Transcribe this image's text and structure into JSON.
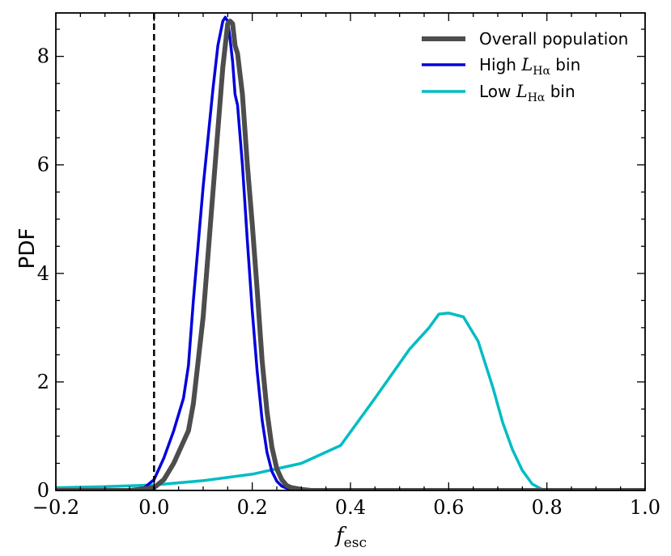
{
  "chart_data": {
    "type": "line",
    "title": "",
    "xlabel": {
      "main": "f",
      "sub": "esc"
    },
    "ylabel": "PDF",
    "xlim": [
      -0.2,
      1.0
    ],
    "ylim": [
      0,
      8.8
    ],
    "xticks": [
      -0.2,
      0.0,
      0.2,
      0.4,
      0.6,
      0.8,
      1.0
    ],
    "xtick_labels": [
      "−0.2",
      "0.0",
      "0.2",
      "0.4",
      "0.6",
      "0.8",
      "1.0"
    ],
    "yticks": [
      0,
      2,
      4,
      6,
      8
    ],
    "ytick_labels": [
      "0",
      "2",
      "4",
      "6",
      "8"
    ],
    "x_minor_step": 0.05,
    "y_minor_step": 0.5,
    "grid": false,
    "legend_position": "top-right",
    "vline": {
      "x": 0.0,
      "style": "dashed",
      "color": "#000000"
    },
    "series": [
      {
        "key": "overall",
        "legend": {
          "prefix": "Overall population",
          "math": "",
          "sub": "",
          "suffix": ""
        },
        "color": "#4d4d4d",
        "x": [
          -0.2,
          -0.05,
          0.0,
          0.02,
          0.04,
          0.06,
          0.07,
          0.08,
          0.1,
          0.12,
          0.14,
          0.15,
          0.155,
          0.16,
          0.165,
          0.17,
          0.18,
          0.19,
          0.2,
          0.21,
          0.22,
          0.23,
          0.24,
          0.25,
          0.26,
          0.27,
          0.28,
          0.3,
          0.32,
          0.35,
          0.4,
          0.6,
          0.8,
          1.0
        ],
        "y": [
          0.0,
          0.0,
          0.05,
          0.2,
          0.5,
          0.9,
          1.1,
          1.6,
          3.2,
          5.5,
          7.8,
          8.6,
          8.65,
          8.6,
          8.2,
          8.05,
          7.3,
          6.0,
          4.9,
          3.7,
          2.4,
          1.45,
          0.8,
          0.4,
          0.2,
          0.09,
          0.05,
          0.02,
          0.0,
          0.0,
          0.0,
          0.0,
          0.0,
          0.0
        ]
      },
      {
        "key": "high",
        "legend": {
          "prefix": "High ",
          "math": "L",
          "sub": "Hα",
          "suffix": " bin"
        },
        "color": "#0000dd",
        "x": [
          -0.2,
          -0.05,
          -0.02,
          0.0,
          0.02,
          0.04,
          0.06,
          0.07,
          0.08,
          0.1,
          0.12,
          0.13,
          0.14,
          0.145,
          0.15,
          0.155,
          0.16,
          0.165,
          0.17,
          0.18,
          0.19,
          0.2,
          0.21,
          0.22,
          0.23,
          0.24,
          0.25,
          0.26,
          0.27,
          0.28,
          0.3,
          0.35,
          0.4,
          0.6,
          0.8,
          1.0
        ],
        "y": [
          0.0,
          0.0,
          0.05,
          0.2,
          0.6,
          1.1,
          1.7,
          2.3,
          3.5,
          5.6,
          7.4,
          8.2,
          8.65,
          8.72,
          8.65,
          8.3,
          7.9,
          7.3,
          7.1,
          6.0,
          4.6,
          3.3,
          2.2,
          1.3,
          0.7,
          0.35,
          0.17,
          0.08,
          0.04,
          0.02,
          0.0,
          0.0,
          0.0,
          0.0,
          0.0,
          0.0
        ]
      },
      {
        "key": "low",
        "legend": {
          "prefix": "Low ",
          "math": "L",
          "sub": "Hα",
          "suffix": " bin"
        },
        "color": "#00bcc4",
        "x": [
          -0.2,
          -0.1,
          0.0,
          0.1,
          0.2,
          0.3,
          0.38,
          0.45,
          0.52,
          0.56,
          0.58,
          0.6,
          0.63,
          0.66,
          0.69,
          0.71,
          0.73,
          0.75,
          0.77,
          0.79,
          0.8,
          0.9,
          1.0
        ],
        "y": [
          0.05,
          0.07,
          0.1,
          0.18,
          0.3,
          0.5,
          0.83,
          1.7,
          2.6,
          3.0,
          3.25,
          3.27,
          3.2,
          2.75,
          1.9,
          1.25,
          0.75,
          0.37,
          0.12,
          0.02,
          0.0,
          0.0,
          0.0
        ]
      }
    ]
  }
}
